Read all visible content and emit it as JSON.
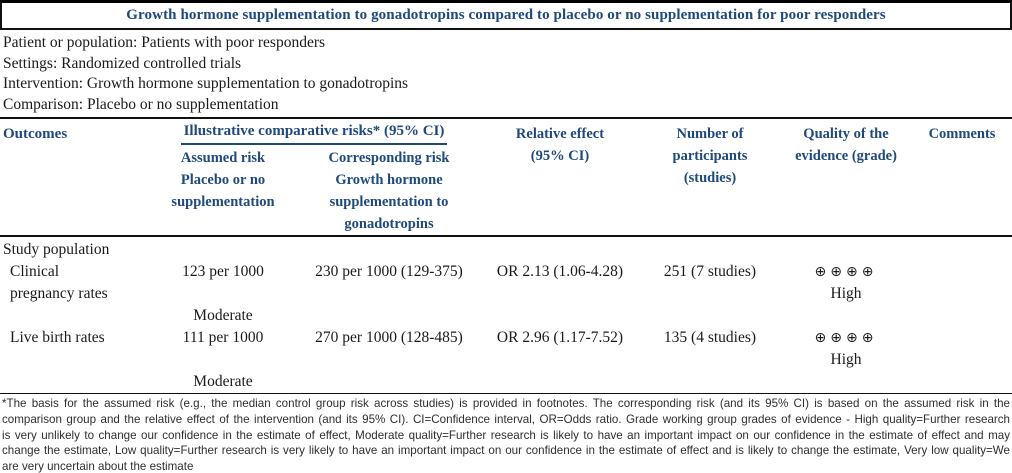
{
  "accent_color": "#1F497D",
  "title": "Growth hormone supplementation to gonadotropins compared to placebo or no supplementation for poor responders",
  "info": {
    "patient": "Patient or population: Patients with poor responders",
    "settings": "Settings: Randomized controlled trials",
    "intervention": "Intervention: Growth hormone supplementation to gonadotropins",
    "comparison": "Comparison: Placebo or no supplementation"
  },
  "table": {
    "headers": {
      "outcomes": "Outcomes",
      "group": "Illustrative comparative risks* (95% CI)",
      "assumed_title": "Assumed risk",
      "assumed_subtitle": "Placebo or no supplementation",
      "corresponding_title": "Corresponding risk",
      "corresponding_subtitle": "Growth hormone supplementation to gonadotropins",
      "relative": "Relative effect (95% CI)",
      "participants": "Number of participants (studies)",
      "quality": "Quality of the evidence (grade)",
      "comments": "Comments"
    },
    "section": "Study population",
    "rows": [
      {
        "outcome": "Clinical pregnancy rates",
        "assumed": "123 per 1000",
        "corresponding": "230 per 1000 (129-375)",
        "relative": "OR 2.13 (1.06-4.28)",
        "participants": "251 (7 studies)",
        "quality_icons": "⊕⊕⊕⊕",
        "quality_label": "High",
        "assumed_grade": "Moderate"
      },
      {
        "outcome": "Live birth rates",
        "assumed": "111 per 1000",
        "corresponding": "270 per 1000 (128-485)",
        "relative": "OR 2.96 (1.17-7.52)",
        "participants": "135 (4 studies)",
        "quality_icons": "⊕⊕⊕⊕",
        "quality_label": "High",
        "assumed_grade": "Moderate"
      }
    ]
  },
  "footnote": {
    "lines": [
      "*The basis for the assumed risk (e.g., the median control group risk across studies) is provided in footnotes. The corresponding risk (and its 95% CI) is based on the assumed risk in the",
      "comparison group and the relative effect of the intervention (and its 95% CI). CI=Confidence interval, OR=Odds ratio. Grade working group grades of evidence - High quality=Further research",
      "is very unlikely to change our confidence in the estimate of effect, Moderate quality=Further research is likely to have an important impact on our confidence in the estimate of effect and may",
      "change the estimate, Low quality=Further research is very likely to have an important impact on our confidence in the estimate of effect and is likely to change the estimate, Very low quality=We",
      "are very uncertain about the estimate"
    ]
  }
}
